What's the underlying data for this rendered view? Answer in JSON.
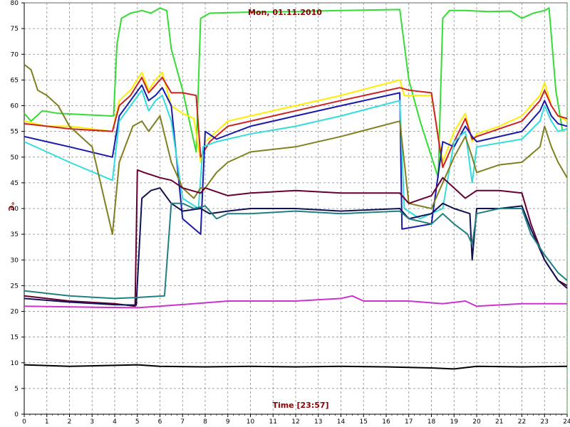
{
  "chart_data": {
    "type": "line",
    "title": "Mon, 01.11.2010",
    "xlabel": "Time [23:57]",
    "ylabel": "°C",
    "xlim": [
      0,
      24
    ],
    "ylim": [
      0,
      80
    ],
    "x_ticks": [
      0,
      1,
      2,
      3,
      4,
      5,
      6,
      7,
      8,
      9,
      10,
      11,
      12,
      13,
      14,
      15,
      16,
      17,
      18,
      19,
      20,
      21,
      22,
      23,
      24
    ],
    "y_ticks": [
      0,
      5,
      10,
      15,
      20,
      25,
      30,
      35,
      40,
      45,
      50,
      55,
      60,
      65,
      70,
      75,
      80
    ],
    "grid": true,
    "series": [
      {
        "color": "#33dd33",
        "points": [
          [
            0,
            58.5
          ],
          [
            0.3,
            57
          ],
          [
            0.8,
            59
          ],
          [
            1.5,
            58.5
          ],
          [
            3.8,
            58
          ],
          [
            3.95,
            58
          ],
          [
            4.1,
            72
          ],
          [
            4.3,
            77
          ],
          [
            4.7,
            78
          ],
          [
            5.2,
            78.5
          ],
          [
            5.6,
            78
          ],
          [
            6,
            79
          ],
          [
            6.3,
            78.5
          ],
          [
            6.5,
            71
          ],
          [
            7,
            63
          ],
          [
            7.6,
            51
          ],
          [
            7.8,
            77
          ],
          [
            8.2,
            78
          ],
          [
            10,
            78.2
          ],
          [
            12,
            78.3
          ],
          [
            14,
            78.5
          ],
          [
            16.6,
            78.7
          ],
          [
            17,
            65
          ],
          [
            17.5,
            57
          ],
          [
            18.3,
            46
          ],
          [
            18.5,
            77
          ],
          [
            18.8,
            78.5
          ],
          [
            19.5,
            78.5
          ],
          [
            20.5,
            78.3
          ],
          [
            21.5,
            78.4
          ],
          [
            22,
            77
          ],
          [
            22.5,
            78
          ],
          [
            23,
            78.5
          ],
          [
            23.2,
            79
          ],
          [
            23.5,
            63
          ],
          [
            23.8,
            55
          ]
        ]
      },
      {
        "color": "#ffee00",
        "points": [
          [
            0,
            57
          ],
          [
            1,
            56
          ],
          [
            2,
            56
          ],
          [
            3.9,
            55
          ],
          [
            4.2,
            61
          ],
          [
            4.7,
            63
          ],
          [
            5.2,
            66.5
          ],
          [
            5.5,
            63
          ],
          [
            5.8,
            65
          ],
          [
            6.1,
            66.5
          ],
          [
            6.5,
            60
          ],
          [
            7,
            58.5
          ],
          [
            7.5,
            57.5
          ],
          [
            7.8,
            49
          ],
          [
            8,
            53
          ],
          [
            9,
            57
          ],
          [
            10,
            58
          ],
          [
            12,
            60
          ],
          [
            14,
            62
          ],
          [
            16.6,
            65
          ],
          [
            16.8,
            62
          ],
          [
            18,
            62
          ],
          [
            18.5,
            49
          ],
          [
            19,
            55
          ],
          [
            19.5,
            58.5
          ],
          [
            19.8,
            53
          ],
          [
            20,
            54.5
          ],
          [
            21,
            56
          ],
          [
            22,
            58
          ],
          [
            22.8,
            62
          ],
          [
            23,
            64.5
          ],
          [
            23.3,
            60
          ],
          [
            23.6,
            58
          ],
          [
            24,
            57
          ]
        ]
      },
      {
        "color": "#cc2222",
        "points": [
          [
            0,
            56.5
          ],
          [
            1,
            56
          ],
          [
            2,
            55.5
          ],
          [
            3.9,
            55
          ],
          [
            4.2,
            60
          ],
          [
            4.7,
            62
          ],
          [
            5.2,
            65.5
          ],
          [
            5.5,
            62.5
          ],
          [
            5.8,
            64
          ],
          [
            6.1,
            65.5
          ],
          [
            6.5,
            62.5
          ],
          [
            7,
            62.5
          ],
          [
            7.6,
            62
          ],
          [
            7.8,
            50
          ],
          [
            8.2,
            53
          ],
          [
            9,
            56
          ],
          [
            12,
            59
          ],
          [
            14,
            61
          ],
          [
            16.6,
            63.5
          ],
          [
            17,
            63
          ],
          [
            18,
            62.5
          ],
          [
            18.5,
            48
          ],
          [
            19,
            53
          ],
          [
            19.5,
            57.5
          ],
          [
            19.8,
            53.5
          ],
          [
            20,
            54
          ],
          [
            22,
            57
          ],
          [
            22.8,
            61
          ],
          [
            23,
            63
          ],
          [
            23.3,
            60
          ],
          [
            23.6,
            58
          ],
          [
            24,
            57.5
          ]
        ]
      },
      {
        "color": "#1a1aaa",
        "points": [
          [
            0,
            54
          ],
          [
            1,
            53
          ],
          [
            2,
            52
          ],
          [
            3.9,
            50
          ],
          [
            4.2,
            58
          ],
          [
            4.7,
            61
          ],
          [
            5.2,
            64
          ],
          [
            5.5,
            61
          ],
          [
            5.8,
            62
          ],
          [
            6.1,
            63.5
          ],
          [
            6.5,
            60
          ],
          [
            7,
            38
          ],
          [
            7.8,
            35
          ],
          [
            8,
            55
          ],
          [
            8.5,
            53.5
          ],
          [
            10,
            56
          ],
          [
            12,
            58
          ],
          [
            14,
            60
          ],
          [
            16.6,
            62.5
          ],
          [
            16.7,
            36
          ],
          [
            18,
            37
          ],
          [
            18.5,
            53
          ],
          [
            19,
            52
          ],
          [
            19.5,
            56
          ],
          [
            19.8,
            54
          ],
          [
            20,
            53
          ],
          [
            22,
            55
          ],
          [
            22.8,
            59
          ],
          [
            23,
            61
          ],
          [
            23.3,
            58
          ],
          [
            23.6,
            56.5
          ],
          [
            24,
            56
          ]
        ]
      },
      {
        "color": "#33dddd",
        "points": [
          [
            0,
            53
          ],
          [
            1,
            51
          ],
          [
            2,
            49
          ],
          [
            3.9,
            45.5
          ],
          [
            4.2,
            57
          ],
          [
            4.7,
            60
          ],
          [
            5.2,
            63
          ],
          [
            5.5,
            59
          ],
          [
            5.8,
            61
          ],
          [
            6.1,
            62
          ],
          [
            6.5,
            57
          ],
          [
            7,
            42
          ],
          [
            7.7,
            40
          ],
          [
            7.9,
            52
          ],
          [
            8.5,
            53
          ],
          [
            10,
            54.5
          ],
          [
            12,
            56
          ],
          [
            14,
            58
          ],
          [
            16.6,
            61
          ],
          [
            16.8,
            40
          ],
          [
            17.5,
            38
          ],
          [
            18.5,
            40
          ],
          [
            19,
            53
          ],
          [
            19.5,
            55
          ],
          [
            19.8,
            45
          ],
          [
            20,
            52
          ],
          [
            22,
            53.5
          ],
          [
            22.8,
            57
          ],
          [
            23,
            60
          ],
          [
            23.3,
            57
          ],
          [
            23.6,
            55
          ],
          [
            24,
            55.5
          ]
        ]
      },
      {
        "color": "#808020",
        "points": [
          [
            0,
            68
          ],
          [
            0.3,
            67
          ],
          [
            0.6,
            63
          ],
          [
            1,
            62
          ],
          [
            1.5,
            60
          ],
          [
            2,
            56
          ],
          [
            3,
            52
          ],
          [
            3.9,
            35
          ],
          [
            4.2,
            49
          ],
          [
            4.8,
            56
          ],
          [
            5.2,
            57
          ],
          [
            5.5,
            55
          ],
          [
            6,
            58
          ],
          [
            6.5,
            49
          ],
          [
            7,
            44
          ],
          [
            7.5,
            42
          ],
          [
            7.8,
            44
          ],
          [
            8,
            44
          ],
          [
            8.5,
            47
          ],
          [
            9,
            49
          ],
          [
            10,
            51
          ],
          [
            12,
            52
          ],
          [
            14,
            54
          ],
          [
            16.6,
            57
          ],
          [
            17,
            41
          ],
          [
            18,
            40
          ],
          [
            18.5,
            45
          ],
          [
            19,
            50
          ],
          [
            19.5,
            54
          ],
          [
            19.8,
            50
          ],
          [
            20,
            47
          ],
          [
            21,
            48.5
          ],
          [
            22,
            49
          ],
          [
            22.8,
            52
          ],
          [
            23,
            56
          ],
          [
            23.3,
            52
          ],
          [
            23.6,
            49
          ],
          [
            24,
            46
          ]
        ]
      },
      {
        "color": "#660033",
        "points": [
          [
            0,
            23
          ],
          [
            2,
            22
          ],
          [
            4,
            21.5
          ],
          [
            4.9,
            21
          ],
          [
            5,
            47.5
          ],
          [
            5.3,
            47
          ],
          [
            6,
            46
          ],
          [
            6.5,
            45.5
          ],
          [
            7,
            44
          ],
          [
            7.8,
            43
          ],
          [
            8,
            44
          ],
          [
            9,
            42.5
          ],
          [
            10,
            43
          ],
          [
            12,
            43.5
          ],
          [
            14,
            43
          ],
          [
            16.6,
            43
          ],
          [
            17,
            41
          ],
          [
            18,
            42.5
          ],
          [
            18.5,
            46
          ],
          [
            19,
            44
          ],
          [
            19.5,
            42
          ],
          [
            20,
            43.5
          ],
          [
            21,
            43.5
          ],
          [
            22,
            43
          ],
          [
            22.4,
            37
          ],
          [
            23,
            30
          ],
          [
            23.6,
            26
          ],
          [
            24,
            25
          ]
        ]
      },
      {
        "color": "#111155",
        "points": [
          [
            0,
            22.5
          ],
          [
            2,
            21.8
          ],
          [
            4,
            21.3
          ],
          [
            4.95,
            21.2
          ],
          [
            5.2,
            42
          ],
          [
            5.6,
            43.5
          ],
          [
            6,
            44
          ],
          [
            6.5,
            41
          ],
          [
            7,
            39.5
          ],
          [
            7.8,
            40
          ],
          [
            8.2,
            39
          ],
          [
            9,
            39.5
          ],
          [
            10,
            40
          ],
          [
            12,
            40
          ],
          [
            14,
            39.5
          ],
          [
            16.6,
            40
          ],
          [
            17,
            38
          ],
          [
            18,
            39
          ],
          [
            18.5,
            41
          ],
          [
            19,
            40
          ],
          [
            19.7,
            39
          ],
          [
            19.8,
            30
          ],
          [
            20,
            40
          ],
          [
            21,
            40
          ],
          [
            22,
            40.5
          ],
          [
            22.4,
            36
          ],
          [
            23,
            30
          ],
          [
            23.6,
            26
          ],
          [
            24,
            24.5
          ]
        ]
      },
      {
        "color": "#208080",
        "points": [
          [
            0,
            24
          ],
          [
            2,
            23
          ],
          [
            4,
            22.5
          ],
          [
            5,
            22.7
          ],
          [
            6.2,
            23
          ],
          [
            6.5,
            41
          ],
          [
            7,
            41
          ],
          [
            7.5,
            40
          ],
          [
            8,
            40.5
          ],
          [
            8.5,
            38
          ],
          [
            9,
            39
          ],
          [
            10,
            39
          ],
          [
            12,
            39.5
          ],
          [
            14,
            39
          ],
          [
            16.6,
            39.5
          ],
          [
            17,
            38
          ],
          [
            18,
            37
          ],
          [
            18.5,
            39
          ],
          [
            19,
            37
          ],
          [
            19.6,
            35
          ],
          [
            19.8,
            33
          ],
          [
            20,
            39
          ],
          [
            21,
            40
          ],
          [
            22,
            40
          ],
          [
            22.4,
            35
          ],
          [
            23,
            31
          ],
          [
            23.6,
            27.5
          ],
          [
            24,
            26
          ]
        ]
      },
      {
        "color": "#cc33cc",
        "points": [
          [
            0,
            21
          ],
          [
            3,
            20.8
          ],
          [
            5,
            20.7
          ],
          [
            6,
            21
          ],
          [
            7.5,
            21.5
          ],
          [
            9,
            22
          ],
          [
            12,
            22
          ],
          [
            14,
            22.5
          ],
          [
            14.5,
            23
          ],
          [
            15,
            22
          ],
          [
            17,
            22
          ],
          [
            18.5,
            21.5
          ],
          [
            19.5,
            22
          ],
          [
            20,
            21
          ],
          [
            22,
            21.5
          ],
          [
            24,
            21.5
          ]
        ]
      },
      {
        "color": "#000000",
        "points": [
          [
            0,
            9.6
          ],
          [
            2,
            9.3
          ],
          [
            4,
            9.5
          ],
          [
            5,
            9.6
          ],
          [
            6,
            9.3
          ],
          [
            8,
            9.2
          ],
          [
            10,
            9.3
          ],
          [
            12,
            9.2
          ],
          [
            14,
            9.3
          ],
          [
            16,
            9.2
          ],
          [
            18,
            9.0
          ],
          [
            19,
            8.8
          ],
          [
            20,
            9.3
          ],
          [
            22,
            9.2
          ],
          [
            24,
            9.3
          ]
        ]
      }
    ]
  }
}
